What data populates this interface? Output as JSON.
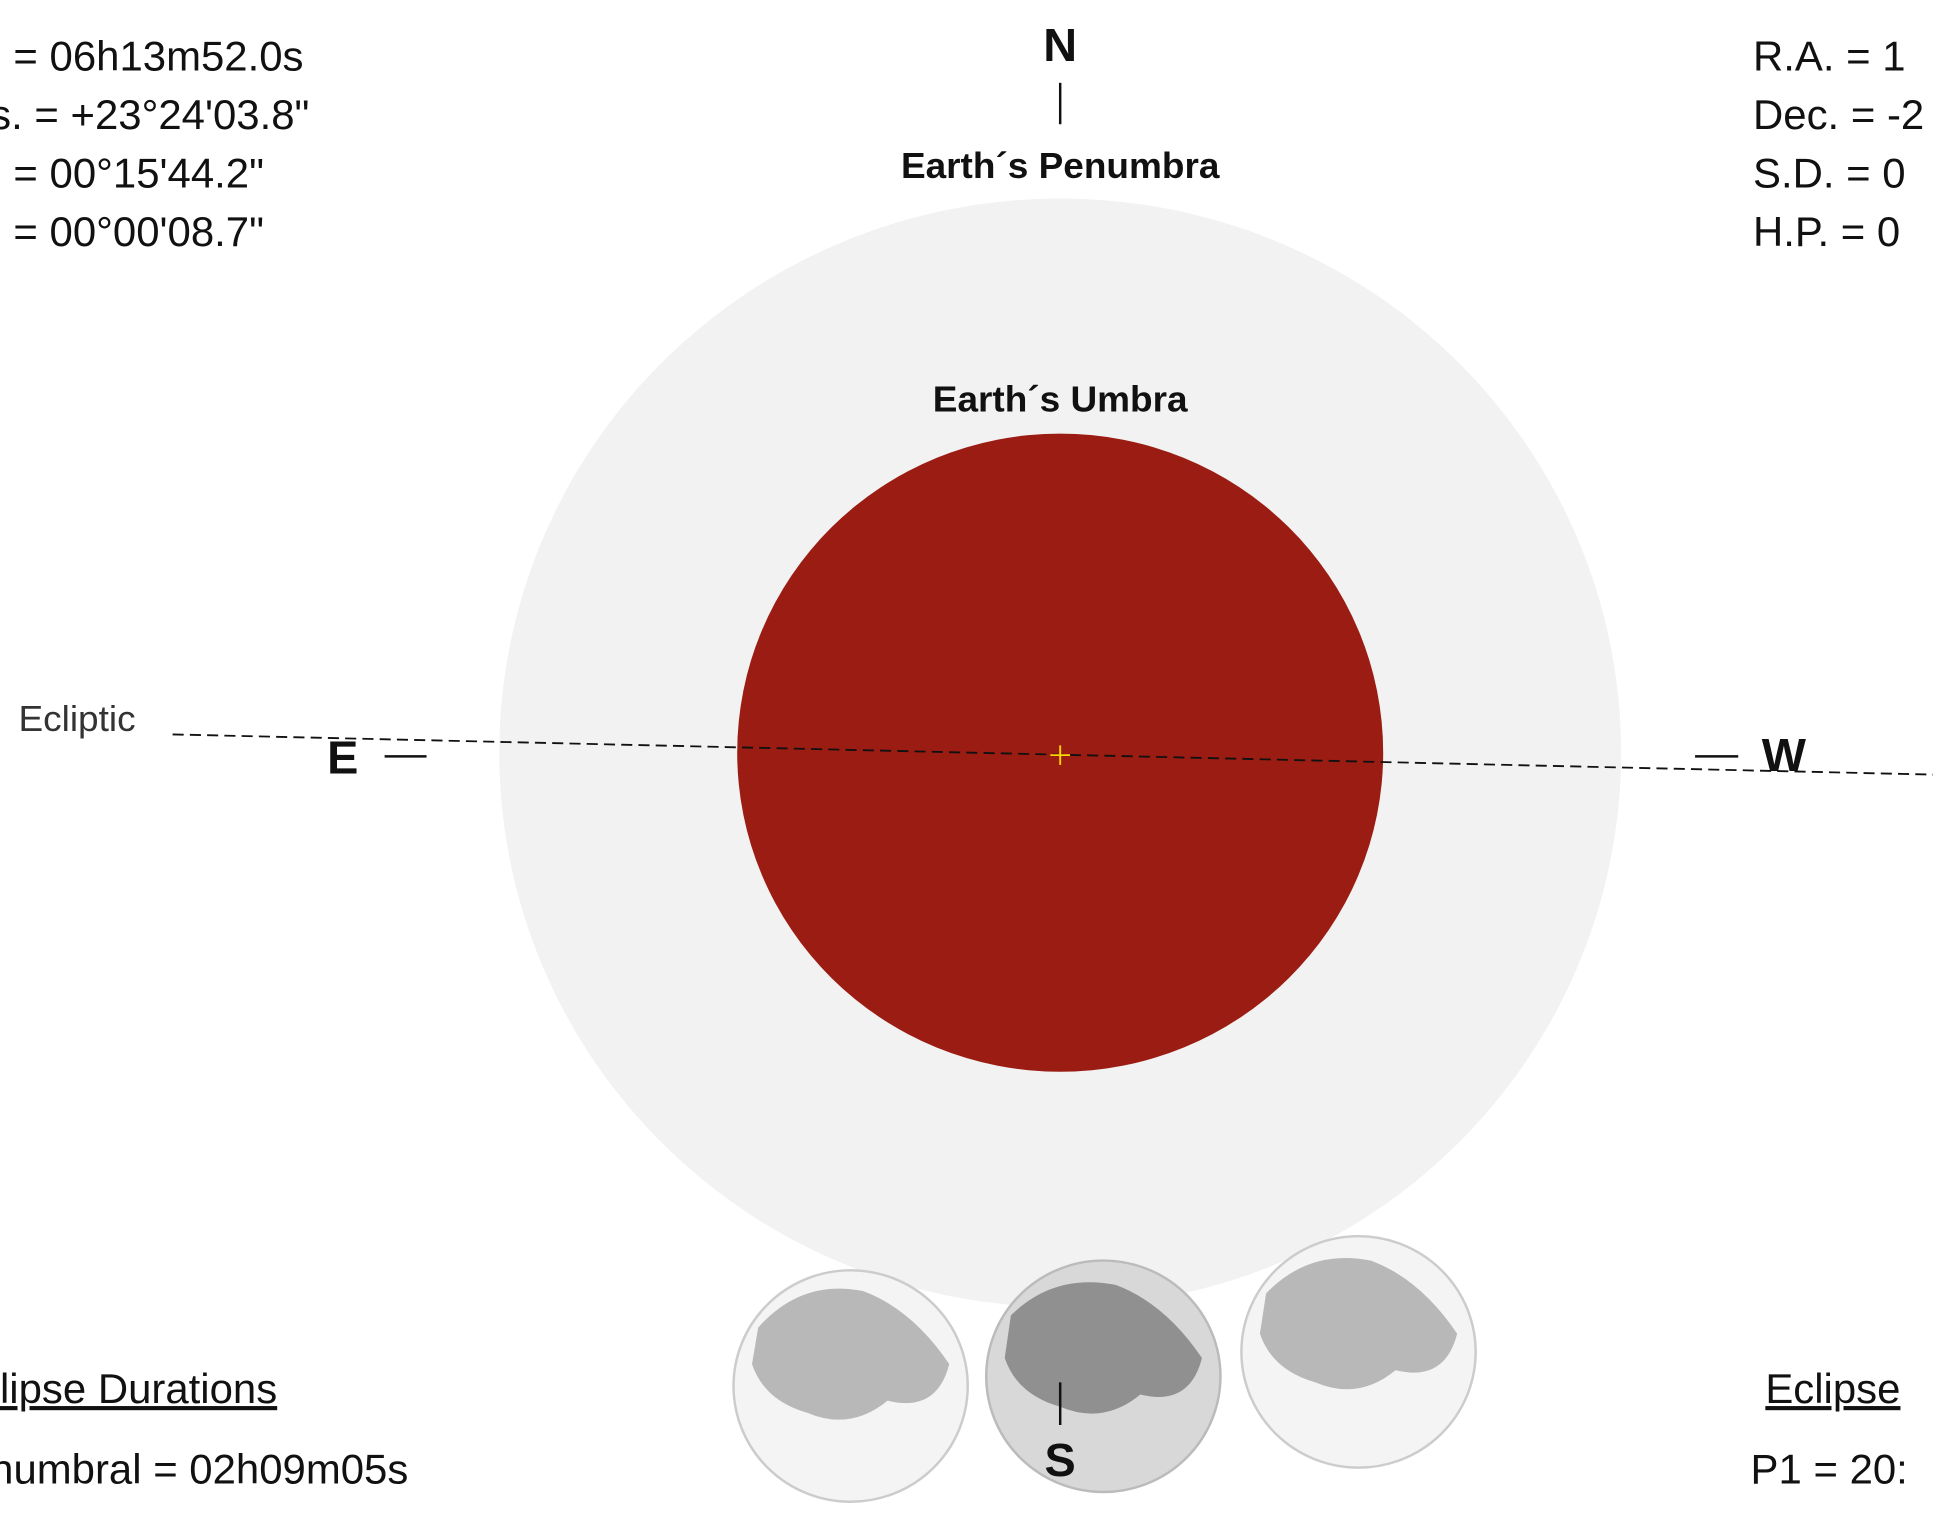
{
  "sun_info": [
    ". =  06h13m52.0s",
    "s. = +23°24'03.8\"",
    ". =  00°15'44.2\"",
    ". =  00°00'08.7\""
  ],
  "moon_info": [
    "R.A. =  1",
    "Dec. = -2",
    "S.D. =  0",
    "H.P. =  0"
  ],
  "compass": {
    "north": "N",
    "south": "S",
    "east": "E",
    "west": "W"
  },
  "labels": {
    "penumbra": "Earth´s Penumbra",
    "umbra": "Earth´s Umbra",
    "ecliptic": "Ecliptic"
  },
  "durations": {
    "heading": "lipse Durations",
    "lines": [
      "numbral = 02h09m05s"
    ]
  },
  "contacts": {
    "heading": "Eclipse",
    "lines": [
      "P1 = 20:"
    ]
  }
}
